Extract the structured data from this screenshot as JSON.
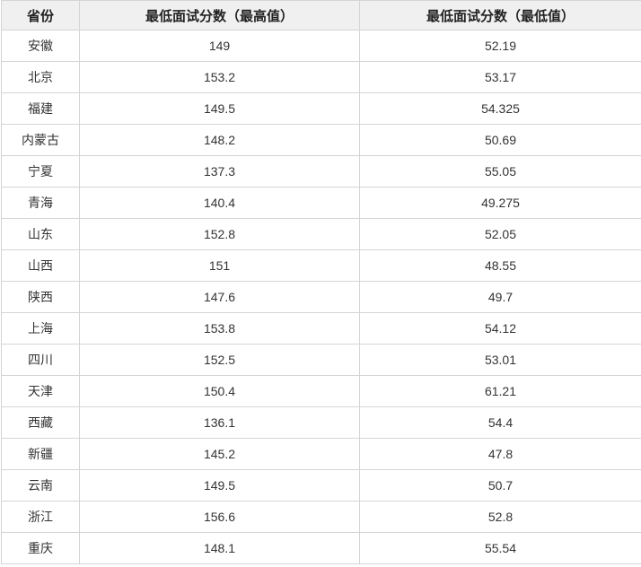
{
  "table": {
    "headers": [
      "省份",
      "最低面试分数（最高值）",
      "最低面试分数（最低值）"
    ],
    "rows": [
      [
        "安徽",
        "149",
        "52.19"
      ],
      [
        "北京",
        "153.2",
        "53.17"
      ],
      [
        "福建",
        "149.5",
        "54.325"
      ],
      [
        "内蒙古",
        "148.2",
        "50.69"
      ],
      [
        "宁夏",
        "137.3",
        "55.05"
      ],
      [
        "青海",
        "140.4",
        "49.275"
      ],
      [
        "山东",
        "152.8",
        "52.05"
      ],
      [
        "山西",
        "151",
        "48.55"
      ],
      [
        "陕西",
        "147.6",
        "49.7"
      ],
      [
        "上海",
        "153.8",
        "54.12"
      ],
      [
        "四川",
        "152.5",
        "53.01"
      ],
      [
        "天津",
        "150.4",
        "61.21"
      ],
      [
        "西藏",
        "136.1",
        "54.4"
      ],
      [
        "新疆",
        "145.2",
        "47.8"
      ],
      [
        "云南",
        "149.5",
        "50.7"
      ],
      [
        "浙江",
        "156.6",
        "52.8"
      ],
      [
        "重庆",
        "148.1",
        "55.54"
      ]
    ]
  }
}
